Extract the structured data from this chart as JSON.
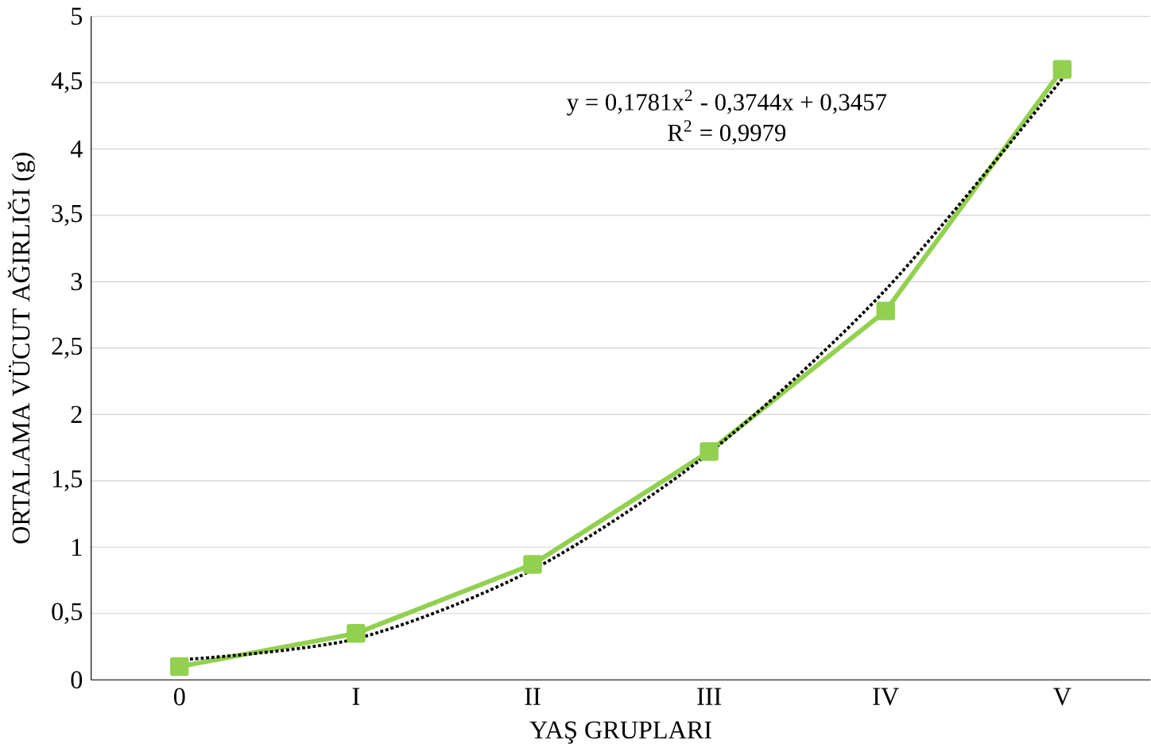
{
  "chart_data": {
    "type": "line",
    "xlabel": "YAŞ GRUPLARI",
    "ylabel": "ORTALAMA VÜCUT AĞIRLIĞI (g)",
    "categories": [
      "0",
      "I",
      "II",
      "III",
      "IV",
      "V"
    ],
    "series": [
      {
        "color": "#92d050",
        "values": [
          0.1,
          0.35,
          0.87,
          1.72,
          2.78,
          4.6
        ],
        "marker": "square",
        "line_style": "solid"
      },
      {
        "color": "#000000",
        "values": [
          0.15,
          0.31,
          0.83,
          1.71,
          2.94,
          4.53
        ],
        "marker": "none",
        "line_style": "dotted"
      }
    ],
    "ylim": [
      0,
      5
    ],
    "yticks": [
      0,
      {
        "value": 0.5,
        "label": "0,5"
      },
      1,
      {
        "value": 1.5,
        "label": "1,5"
      },
      2,
      {
        "value": 2.5,
        "label": "2,5"
      },
      3,
      {
        "value": 3.5,
        "label": "3,5"
      },
      4,
      {
        "value": 4.5,
        "label": "4,5"
      },
      5
    ],
    "grid": "y",
    "annotations": [
      "y = 0,1781x$^{2}$ - 0,3744x + 0,3457",
      "R$^{2}$ = 0,9979"
    ]
  }
}
